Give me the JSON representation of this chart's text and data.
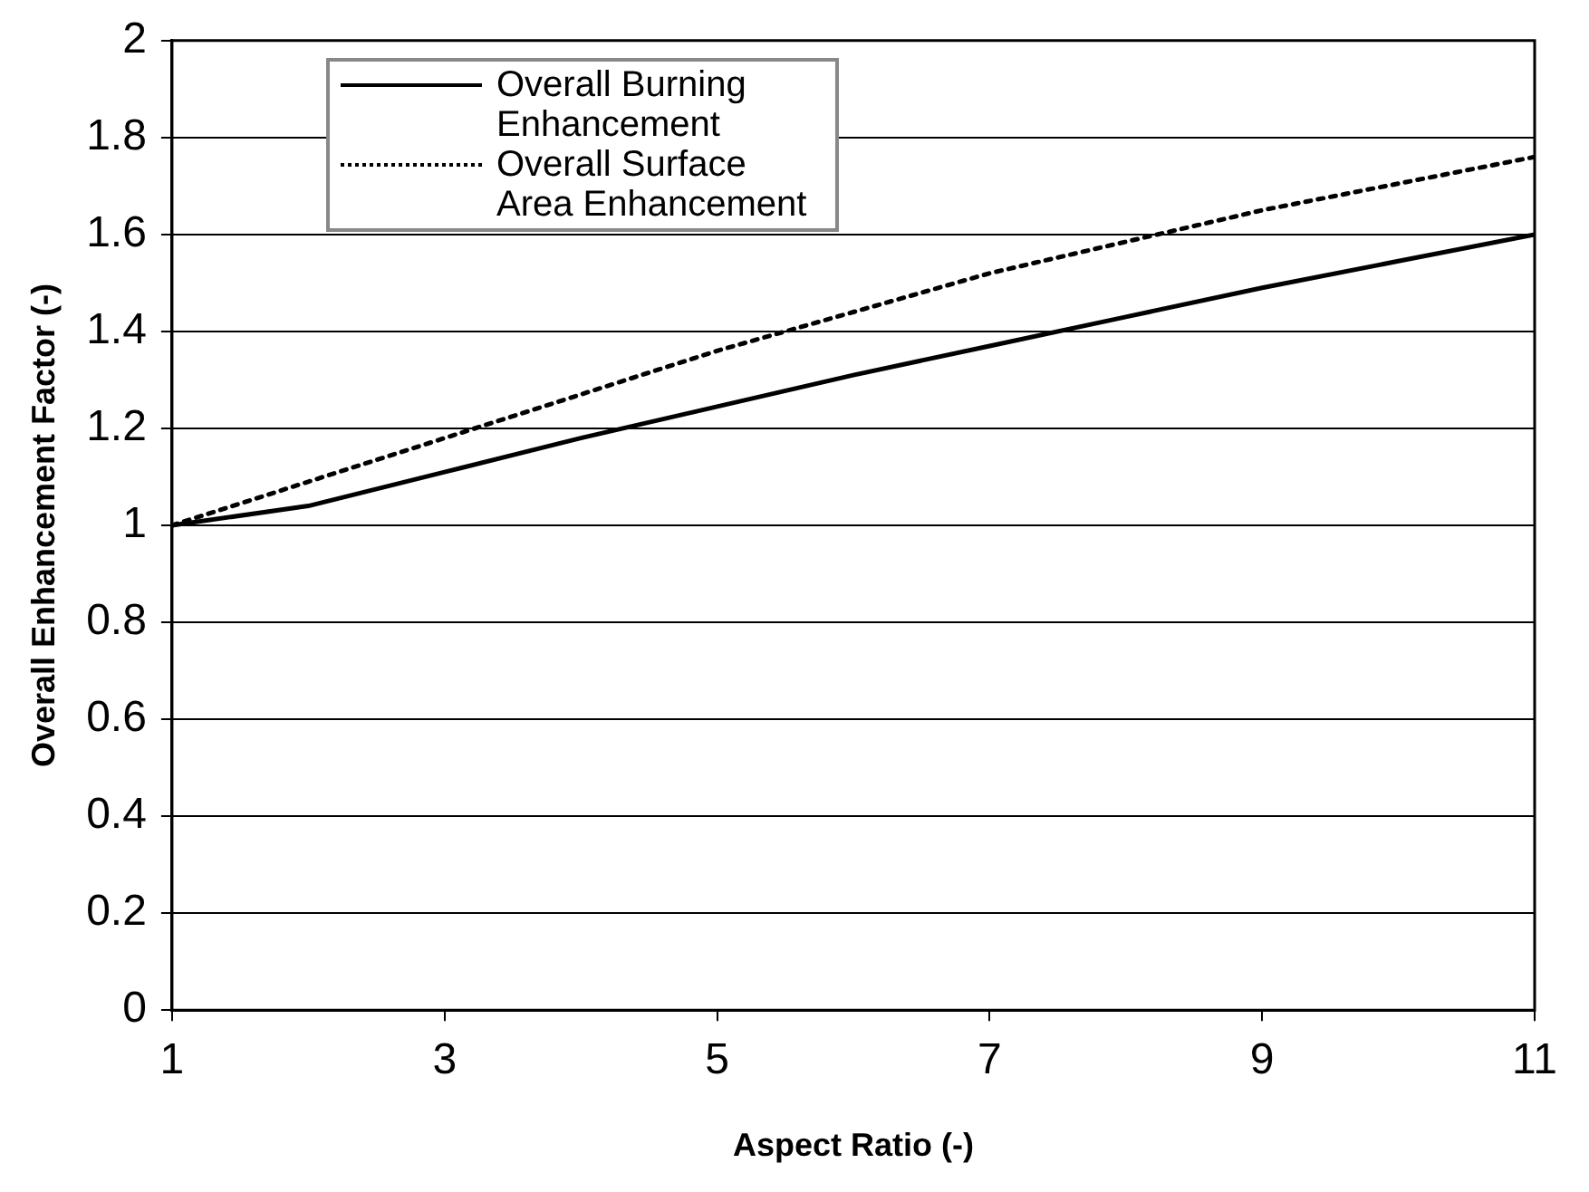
{
  "chart_data": {
    "type": "line",
    "xlabel": "Aspect Ratio (-)",
    "ylabel": "Overall Enhancement Factor (-)",
    "x": [
      1,
      2,
      3,
      4,
      5,
      6,
      7,
      8,
      9,
      10,
      11
    ],
    "series": [
      {
        "name": "Overall Burning Enhancement",
        "color": "#000000",
        "line_style": "solid",
        "values": [
          1,
          1.04,
          1.11,
          1.18,
          1.245,
          1.31,
          1.37,
          1.43,
          1.49,
          1.545,
          1.6
        ]
      },
      {
        "name": "Overall Surface Area Enhancement",
        "color": "#000000",
        "line_style": "dotted",
        "values": [
          1,
          1.09,
          1.18,
          1.27,
          1.36,
          1.44,
          1.52,
          1.585,
          1.65,
          1.705,
          1.76
        ]
      }
    ],
    "xlim": [
      1,
      11
    ],
    "xticks": [
      1,
      3,
      5,
      7,
      9,
      11
    ],
    "ylim": [
      0,
      2
    ],
    "yticks": [
      0,
      0.2,
      0.4,
      0.6,
      0.8,
      1,
      1.2,
      1.4,
      1.6,
      1.8,
      2
    ],
    "grid": "y",
    "legend": "top left",
    "marker": "none"
  }
}
